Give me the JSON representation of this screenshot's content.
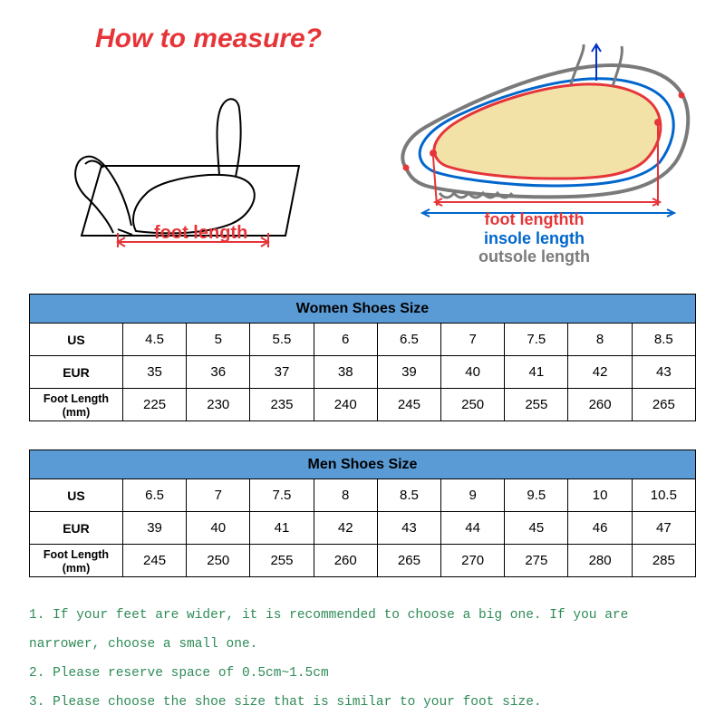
{
  "title": "How to measure?",
  "left_diagram_label": "foot length",
  "right_labels": {
    "foot": "foot lengthth",
    "insole": "insole length",
    "outsole": "outsole length"
  },
  "colors": {
    "title": "#e63539",
    "accent_red": "#e63539",
    "insole_blue": "#0066cc",
    "outsole_gray": "#7a7a7a",
    "table_header": "#5b9bd5",
    "border": "#000000",
    "notes": "#2e8b57",
    "foot_fill": "#f2e2a8",
    "shoe_line": "#7a7a7a",
    "arrow_blue": "#0033cc"
  },
  "tables": {
    "women": {
      "title": "Women Shoes Size",
      "rows": [
        {
          "label": "US",
          "values": [
            "4.5",
            "5",
            "5.5",
            "6",
            "6.5",
            "7",
            "7.5",
            "8",
            "8.5"
          ]
        },
        {
          "label": "EUR",
          "values": [
            "35",
            "36",
            "37",
            "38",
            "39",
            "40",
            "41",
            "42",
            "43"
          ]
        },
        {
          "label": "Foot Length (mm)",
          "values": [
            "225",
            "230",
            "235",
            "240",
            "245",
            "250",
            "255",
            "260",
            "265"
          ],
          "small": true
        }
      ]
    },
    "men": {
      "title": "Men Shoes Size",
      "rows": [
        {
          "label": "US",
          "values": [
            "6.5",
            "7",
            "7.5",
            "8",
            "8.5",
            "9",
            "9.5",
            "10",
            "10.5"
          ]
        },
        {
          "label": "EUR",
          "values": [
            "39",
            "40",
            "41",
            "42",
            "43",
            "44",
            "45",
            "46",
            "47"
          ]
        },
        {
          "label": "Foot Length (mm)",
          "values": [
            "245",
            "250",
            "255",
            "260",
            "265",
            "270",
            "275",
            "280",
            "285"
          ],
          "small": true
        }
      ]
    }
  },
  "notes": [
    "1. If your feet are wider, it is recommended to choose a big one. If you are narrower, choose a small one.",
    "2. Please reserve space of 0.5cm~1.5cm",
    "3. Please choose the shoe size that is similar to your foot size."
  ]
}
